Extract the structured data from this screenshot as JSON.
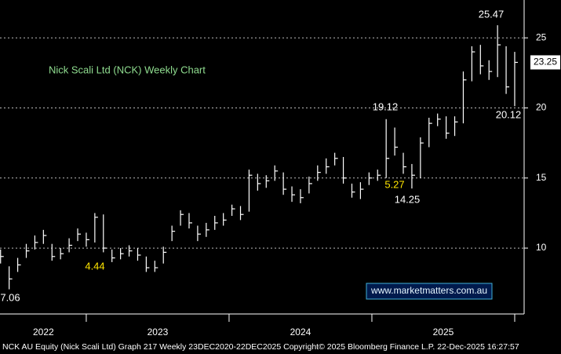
{
  "chart_data": {
    "type": "ohlc",
    "title": "Nick Scali Ltd (NCK) Weekly Chart",
    "x": [
      2022.4,
      2022.46,
      2022.52,
      2022.58,
      2022.64,
      2022.7,
      2022.76,
      2022.82,
      2022.88,
      2022.94,
      2023.0,
      2023.06,
      2023.12,
      2023.18,
      2023.24,
      2023.3,
      2023.36,
      2023.42,
      2023.48,
      2023.54,
      2023.6,
      2023.66,
      2023.72,
      2023.78,
      2023.84,
      2023.9,
      2023.96,
      2024.02,
      2024.08,
      2024.14,
      2024.2,
      2024.26,
      2024.32,
      2024.38,
      2024.44,
      2024.5,
      2024.56,
      2024.62,
      2024.68,
      2024.74,
      2024.8,
      2024.86,
      2024.92,
      2024.98,
      2025.04,
      2025.1,
      2025.16,
      2025.22,
      2025.28,
      2025.34,
      2025.4,
      2025.46,
      2025.52,
      2025.58,
      2025.64,
      2025.7,
      2025.76,
      2025.82,
      2025.88,
      2025.94,
      2026.0
    ],
    "high": [
      9.9,
      8.7,
      9.3,
      10.3,
      10.9,
      11.3,
      10.3,
      10.0,
      10.7,
      11.4,
      11.1,
      12.5,
      12.4,
      9.9,
      10.0,
      10.2,
      10.0,
      9.4,
      9.1,
      10.1,
      11.6,
      12.7,
      12.5,
      11.6,
      11.8,
      12.3,
      12.5,
      13.1,
      13.0,
      15.6,
      15.3,
      15.2,
      15.9,
      15.4,
      14.4,
      14.2,
      15.1,
      15.9,
      16.4,
      16.8,
      16.5,
      14.6,
      14.7,
      15.4,
      15.6,
      19.2,
      18.6,
      16.8,
      16.0,
      17.9,
      19.3,
      19.6,
      19.4,
      19.4,
      22.6,
      24.4,
      24.5,
      23.4,
      25.9,
      24.4,
      24.0
    ],
    "low": [
      8.9,
      7.06,
      8.3,
      9.3,
      9.9,
      10.3,
      9.1,
      9.2,
      9.7,
      10.5,
      10.1,
      10.4,
      9.7,
      9.0,
      9.2,
      9.4,
      9.1,
      8.3,
      8.3,
      8.9,
      10.5,
      11.6,
      11.4,
      10.5,
      10.8,
      11.3,
      11.6,
      12.3,
      12.0,
      12.6,
      14.1,
      14.3,
      14.8,
      13.8,
      13.3,
      13.2,
      13.9,
      14.8,
      15.3,
      15.9,
      14.6,
      13.6,
      13.5,
      14.5,
      14.8,
      15.0,
      16.6,
      15.3,
      14.25,
      15.0,
      17.2,
      18.7,
      17.8,
      18.0,
      18.9,
      21.9,
      22.4,
      22.0,
      22.2,
      21.0,
      20.12
    ],
    "close": [
      9.4,
      7.8,
      8.8,
      9.8,
      10.4,
      10.9,
      9.4,
      9.6,
      10.2,
      11.0,
      10.6,
      12.2,
      10.0,
      9.3,
      9.6,
      9.8,
      9.5,
      8.6,
      8.6,
      9.7,
      11.2,
      12.4,
      11.8,
      11.0,
      11.3,
      11.8,
      12.0,
      12.8,
      12.4,
      15.2,
      14.6,
      14.8,
      15.5,
      14.2,
      13.8,
      13.6,
      14.6,
      15.4,
      15.8,
      16.4,
      15.0,
      14.0,
      14.2,
      15.0,
      15.2,
      16.4,
      17.2,
      15.8,
      15.2,
      17.5,
      18.9,
      19.2,
      18.2,
      19.0,
      22.0,
      24.0,
      23.0,
      22.6,
      24.5,
      21.5,
      23.25
    ],
    "color": "#ffffff",
    "ylim": [
      5.3,
      27.7
    ],
    "yticks": [
      10,
      15,
      20,
      25
    ],
    "xlim": [
      2022.396,
      2026.066
    ],
    "xticks": [
      {
        "value": 2022.7,
        "label": "2022"
      },
      {
        "value": 2023.5,
        "label": "2023"
      },
      {
        "value": 2024.5,
        "label": "2024"
      },
      {
        "value": 2025.5,
        "label": "2025"
      }
    ],
    "year_dividers": [
      2023,
      2024,
      2025,
      2026
    ],
    "grid": true,
    "last_price": {
      "value": 23.25,
      "label": "23.25"
    },
    "annotations": [
      "25.47",
      "20.12",
      "19.12",
      "14.25",
      "5.27",
      "4.44",
      "7.06"
    ],
    "watermark": "www.marketmatters.com.au",
    "footer": "NCK AU Equity (Nick Scali Ltd) Graph 217 Weekly 23DEC2020-22DEC2025 Copyright© 2025 Bloomberg Finance L.P. 22-Dec-2025 16:27:57"
  }
}
